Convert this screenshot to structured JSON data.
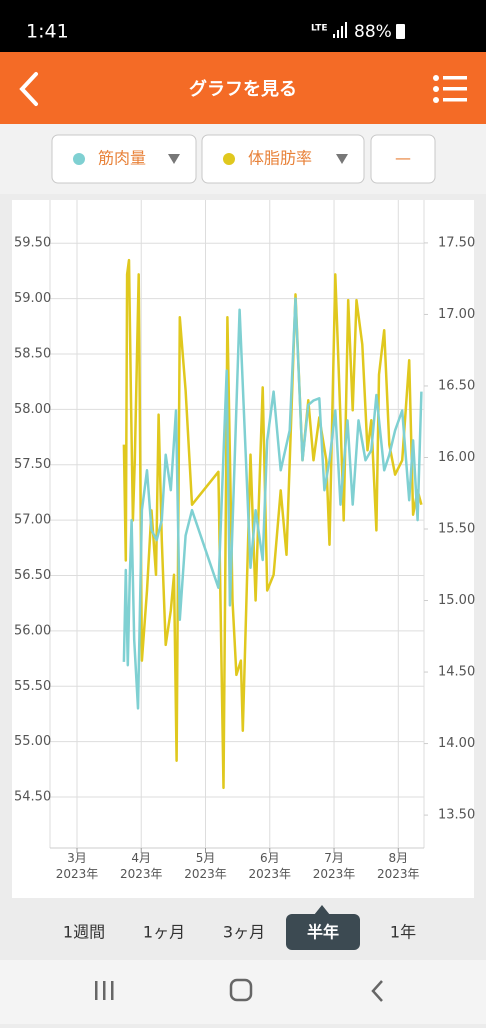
{
  "status_bar": {
    "time": "1:41",
    "network": "LTE",
    "battery": "88%"
  },
  "header": {
    "title": "グラフを見る"
  },
  "selector": {
    "extra": "—"
  },
  "chart_data": {
    "type": "line",
    "xlim": [
      2.58,
      8.4
    ],
    "xticks": [
      {
        "value": 3,
        "label": "3月\n2023年"
      },
      {
        "value": 4,
        "label": "4月\n2023年"
      },
      {
        "value": 5,
        "label": "5月\n2023年"
      },
      {
        "value": 6,
        "label": "6月\n2023年"
      },
      {
        "value": 7,
        "label": "7月\n2023年"
      },
      {
        "value": 8,
        "label": "8月\n2023年"
      }
    ],
    "ylim": [
      54.04,
      59.89
    ],
    "yticks": [
      {
        "value": 54.5,
        "label": "54.50"
      },
      {
        "value": 55,
        "label": "55.00"
      },
      {
        "value": 55.5,
        "label": "55.50"
      },
      {
        "value": 56,
        "label": "56.00"
      },
      {
        "value": 56.5,
        "label": "56.50"
      },
      {
        "value": 57,
        "label": "57.00"
      },
      {
        "value": 57.5,
        "label": "57.50"
      },
      {
        "value": 58,
        "label": "58.00"
      },
      {
        "value": 58.5,
        "label": "58.50"
      },
      {
        "value": 59,
        "label": "59.00"
      },
      {
        "value": 59.5,
        "label": "59.50"
      }
    ],
    "y2lim": [
      13.27,
      17.8
    ],
    "y2ticks": [
      {
        "value": 13.5,
        "label": "13.50"
      },
      {
        "value": 14,
        "label": "14.00"
      },
      {
        "value": 14.5,
        "label": "14.50"
      },
      {
        "value": 15,
        "label": "15.00"
      },
      {
        "value": 15.5,
        "label": "15.50"
      },
      {
        "value": 16,
        "label": "16.00"
      },
      {
        "value": 16.5,
        "label": "16.50"
      },
      {
        "value": 17,
        "label": "17.00"
      },
      {
        "value": 17.5,
        "label": "17.50"
      }
    ],
    "grid": true,
    "series": [
      {
        "name": "筋肉量",
        "color": "#7fd0d2",
        "axis": "y",
        "x": [
          3.73,
          3.76,
          3.79,
          3.82,
          3.85,
          3.89,
          3.95,
          4.01,
          4.09,
          4.16,
          4.24,
          4.32,
          4.38,
          4.46,
          4.54,
          4.6,
          4.69,
          4.79,
          5.2,
          5.33,
          5.38,
          5.53,
          5.7,
          5.78,
          5.89,
          5.96,
          6.06,
          6.17,
          6.31,
          6.4,
          6.51,
          6.6,
          6.68,
          6.77,
          6.85,
          6.93,
          7.02,
          7.1,
          7.21,
          7.29,
          7.38,
          7.49,
          7.58,
          7.66,
          7.78,
          7.86,
          7.95,
          8.06,
          8.17,
          8.23,
          8.3,
          8.36
        ],
        "values": [
          55.72,
          56.55,
          55.69,
          56.46,
          57.0,
          55.92,
          55.3,
          57.09,
          57.45,
          56.91,
          56.82,
          57.0,
          57.59,
          57.27,
          57.99,
          56.1,
          56.86,
          57.09,
          56.39,
          58.35,
          56.23,
          58.9,
          56.57,
          57.09,
          56.64,
          57.72,
          58.16,
          57.45,
          57.81,
          59.0,
          57.54,
          58.04,
          58.08,
          58.1,
          57.27,
          57.54,
          57.99,
          57.14,
          57.9,
          57.14,
          57.9,
          57.54,
          57.63,
          58.13,
          57.45,
          57.59,
          57.81,
          57.99,
          57.18,
          57.72,
          57.0,
          58.16
        ]
      },
      {
        "name": "体脂肪率",
        "color": "#e0c81e",
        "axis": "y2",
        "x": [
          3.73,
          3.76,
          3.78,
          3.81,
          3.84,
          3.87,
          3.9,
          3.96,
          4.01,
          4.09,
          4.16,
          4.23,
          4.27,
          4.32,
          4.38,
          4.46,
          4.51,
          4.55,
          4.6,
          4.69,
          4.79,
          5.2,
          5.28,
          5.34,
          5.42,
          5.48,
          5.55,
          5.58,
          5.7,
          5.78,
          5.89,
          5.96,
          6.06,
          6.17,
          6.26,
          6.4,
          6.51,
          6.6,
          6.68,
          6.77,
          6.88,
          6.93,
          7.02,
          7.1,
          7.15,
          7.22,
          7.29,
          7.35,
          7.44,
          7.52,
          7.58,
          7.66,
          7.7,
          7.78,
          7.86,
          7.95,
          8.06,
          8.17,
          8.23,
          8.3,
          8.36
        ],
        "values": [
          16.09,
          15.28,
          17.28,
          17.38,
          16.4,
          15.56,
          15.98,
          17.28,
          14.58,
          15.07,
          15.63,
          15.18,
          16.3,
          15.42,
          14.69,
          14.93,
          15.18,
          13.88,
          16.98,
          16.47,
          15.67,
          15.9,
          13.69,
          16.98,
          15.0,
          14.48,
          14.58,
          14.09,
          16.02,
          15.0,
          16.49,
          15.07,
          15.18,
          15.77,
          15.32,
          17.14,
          15.98,
          16.4,
          15.98,
          16.28,
          15.98,
          15.39,
          17.28,
          16.26,
          15.56,
          17.1,
          16.33,
          17.1,
          16.79,
          16.05,
          16.26,
          15.49,
          16.58,
          16.89,
          16.09,
          15.88,
          15.98,
          16.68,
          15.6,
          15.77,
          15.67
        ]
      }
    ]
  },
  "period_tabs": {
    "items": [
      "1週間",
      "1ヶ月",
      "3ヶ月",
      "半年",
      "1年"
    ],
    "selected": 3
  }
}
